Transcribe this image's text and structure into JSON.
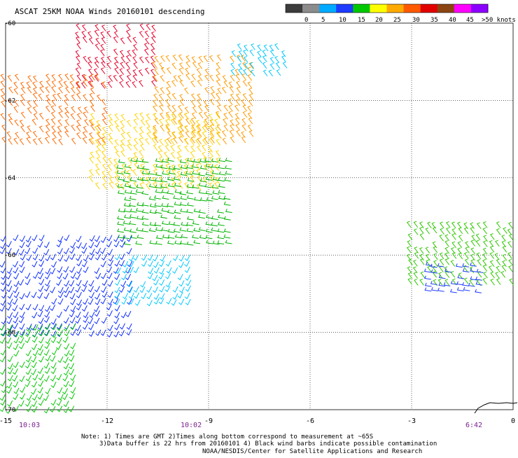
{
  "title": "ASCAT 25KM NOAA Winds 20160101 descending",
  "legend": {
    "labels": [
      "0",
      "5",
      "10",
      "15",
      "20",
      "25",
      "30",
      "35",
      "40",
      "45",
      ">50 knots"
    ],
    "colors": [
      "#3c3c3c",
      "#8c8c8c",
      "#00aaff",
      "#1e3cff",
      "#00c800",
      "#ffff00",
      "#ffaa00",
      "#ff5a00",
      "#e10000",
      "#8b4513",
      "#ff00ff",
      "#8c00ff"
    ]
  },
  "axes": {
    "x_ticks": [
      "-15",
      "-12",
      "-9",
      "-6",
      "-3",
      "0"
    ],
    "y_ticks": [
      "-60",
      "-62",
      "-64",
      "-66",
      "-68",
      "-70"
    ]
  },
  "time_labels": [
    "10:03",
    "10:02",
    "6:42"
  ],
  "notes": [
    "Note: 1) Times are GMT 2)Times along bottom correspond to measurement at ~65S",
    "3)Data buffer is 22 hrs from 20160101 4) Black wind barbs indicate possible contamination",
    "NOAA/NESDIS/Center for Satellite Applications and Research"
  ],
  "map_data": {
    "lon_range": [
      -15,
      0
    ],
    "lat_range": [
      -70,
      -60
    ],
    "grid": true,
    "barb_regions": [
      {
        "name": "red-strong",
        "color": "#e8002a",
        "lon": [
          -12.8,
          -10.5
        ],
        "lat": [
          -60.2,
          -61.8
        ],
        "dir": "SW"
      },
      {
        "name": "orange-west",
        "color": "#ff6a00",
        "lon": [
          -15,
          -12
        ],
        "lat": [
          -61.5,
          -63.2
        ],
        "dir": "SW"
      },
      {
        "name": "orange-east",
        "color": "#ff9a00",
        "lon": [
          -10.5,
          -7.6
        ],
        "lat": [
          -61,
          -63.2
        ],
        "dir": "SW"
      },
      {
        "name": "yellow-center",
        "color": "#ffd400",
        "lon": [
          -12.4,
          -8.5
        ],
        "lat": [
          -62.5,
          -64.4
        ],
        "dir": "SW"
      },
      {
        "name": "green-middle",
        "color": "#00b400",
        "lon": [
          -11.5,
          -8.2
        ],
        "lat": [
          -63.6,
          -65.8
        ],
        "dir": "W"
      },
      {
        "name": "blue-lower",
        "color": "#0a2aff",
        "lon": [
          -15,
          -11.2
        ],
        "lat": [
          -65.5,
          -68
        ],
        "dir": "NW"
      },
      {
        "name": "cyan-lower",
        "color": "#00c8ff",
        "lon": [
          -11.6,
          -9.4
        ],
        "lat": [
          -66,
          -67.2
        ],
        "dir": "NW"
      },
      {
        "name": "green-lower",
        "color": "#00c800",
        "lon": [
          -15,
          -12.9
        ],
        "lat": [
          -67.8,
          -70
        ],
        "dir": "NW"
      },
      {
        "name": "green-far-east",
        "color": "#2ec800",
        "lon": [
          -3,
          0
        ],
        "lat": [
          -65.3,
          -66.9
        ],
        "dir": "SW"
      },
      {
        "name": "blue-far-east",
        "color": "#1e3cff",
        "lon": [
          -2.4,
          -0.8
        ],
        "lat": [
          -66.3,
          -67
        ],
        "dir": "W"
      },
      {
        "name": "cyan-tail",
        "color": "#00c8ff",
        "lon": [
          -8.2,
          -6.7
        ],
        "lat": [
          -60.7,
          -61.4
        ],
        "dir": "SW"
      }
    ]
  }
}
